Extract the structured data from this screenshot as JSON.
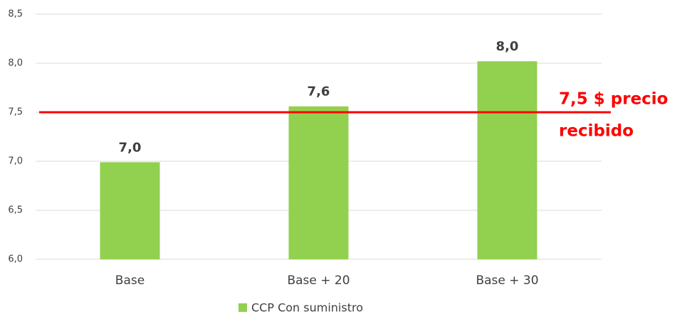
{
  "chart_data": {
    "type": "bar",
    "categories": [
      "Base",
      "Base + 20",
      "Base + 30"
    ],
    "series": [
      {
        "name": "CCP Con suministro",
        "color": "#92d050",
        "values": [
          6.99,
          7.56,
          8.02
        ],
        "value_labels": [
          "7,0",
          "7,6",
          "8,0"
        ]
      }
    ],
    "ylim": [
      6.0,
      8.5
    ],
    "yticks": [
      {
        "value": 6.0,
        "label": "6,0"
      },
      {
        "value": 6.5,
        "label": "6,5"
      },
      {
        "value": 7.0,
        "label": "7,0"
      },
      {
        "value": 7.5,
        "label": "7,5"
      },
      {
        "value": 8.0,
        "label": "8,0"
      },
      {
        "value": 8.5,
        "label": "8,5"
      }
    ],
    "grid": true,
    "reference_line": {
      "value": 7.5,
      "color": "#ff0000",
      "annotation": [
        "7,5 $ precio",
        "recibido"
      ]
    },
    "legend": "bottom"
  }
}
